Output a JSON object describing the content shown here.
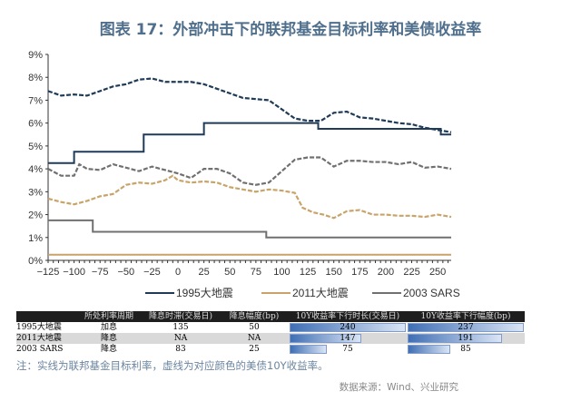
{
  "title": "图表 17：外部冲击下的联邦基金目标利率和美债收益率",
  "chart_data": {
    "type": "line",
    "xlim": [
      -125,
      263
    ],
    "ylim": [
      0,
      9
    ],
    "xticks": [
      -125,
      -100,
      -75,
      -50,
      -25,
      0,
      25,
      50,
      75,
      100,
      125,
      150,
      175,
      200,
      225,
      250
    ],
    "xtick_labels": [
      "−125",
      "−100",
      "−75",
      "−50",
      "−25",
      "0",
      "25",
      "50",
      "75",
      "100",
      "125",
      "150",
      "175",
      "200",
      "225",
      "250"
    ],
    "yticks": [
      0,
      1,
      2,
      3,
      4,
      5,
      6,
      7,
      8,
      9
    ],
    "ytick_labels": [
      "0%",
      "1%",
      "2%",
      "3%",
      "4%",
      "5%",
      "6%",
      "7%",
      "8%",
      "9%"
    ],
    "legend_position": "bottom",
    "legend": [
      "1995大地震",
      "2011大地震",
      "2003 SARS"
    ],
    "colors": {
      "1995": "#1f3b58",
      "2011": "#c8a46a",
      "2003": "#707070"
    },
    "series": [
      {
        "name": "1995大地震",
        "style": "solid",
        "color": "#1f3b58",
        "x": [
          -125,
          -100,
          -100,
          -33,
          -33,
          25,
          25,
          135,
          135,
          253,
          253,
          263
        ],
        "y": [
          4.25,
          4.25,
          4.75,
          4.75,
          5.5,
          5.5,
          6.0,
          6.0,
          5.75,
          5.75,
          5.5,
          5.5
        ]
      },
      {
        "name": "2011大地震",
        "style": "solid",
        "color": "#c8a46a",
        "x": [
          -125,
          263
        ],
        "y": [
          0.25,
          0.25
        ]
      },
      {
        "name": "2003 SARS",
        "style": "solid",
        "color": "#707070",
        "x": [
          -125,
          -82,
          -82,
          85,
          85,
          263
        ],
        "y": [
          1.75,
          1.75,
          1.25,
          1.25,
          1.0,
          1.0
        ]
      },
      {
        "style": "dashed",
        "color": "#1f3b58",
        "x": [
          -125,
          -112.5,
          -100,
          -87.5,
          -75,
          -62.5,
          -50,
          -37.5,
          -25,
          -12.5,
          0,
          12.5,
          25,
          37.5,
          50,
          62.5,
          75,
          87.5,
          100,
          112.5,
          125,
          137.5,
          150,
          162.5,
          175,
          187.5,
          200,
          212.5,
          225,
          237.5,
          250,
          263
        ],
        "y": [
          7.4,
          7.2,
          7.25,
          7.2,
          7.4,
          7.6,
          7.7,
          7.9,
          7.95,
          7.8,
          7.8,
          7.8,
          7.7,
          7.5,
          7.3,
          7.1,
          7.05,
          7.0,
          6.6,
          6.2,
          6.1,
          6.1,
          6.45,
          6.5,
          6.25,
          6.2,
          6.1,
          6.0,
          5.95,
          5.8,
          5.7,
          5.6
        ]
      },
      {
        "style": "dashed",
        "color": "#707070",
        "x": [
          -125,
          -112.5,
          -100,
          -95,
          -87.5,
          -75,
          -62.5,
          -50,
          -37.5,
          -25,
          -12.5,
          0,
          12.5,
          25,
          37.5,
          50,
          62.5,
          75,
          87.5,
          100,
          112.5,
          125,
          137.5,
          150,
          162.5,
          175,
          187.5,
          200,
          212.5,
          225,
          237.5,
          250,
          263
        ],
        "y": [
          4.0,
          3.7,
          3.7,
          4.2,
          4.0,
          3.95,
          4.2,
          4.05,
          3.9,
          4.1,
          3.95,
          3.8,
          3.6,
          4.0,
          4.0,
          3.8,
          3.4,
          3.3,
          3.4,
          3.9,
          4.4,
          4.5,
          4.5,
          4.1,
          4.35,
          4.35,
          4.3,
          4.3,
          4.2,
          4.3,
          4.05,
          4.1,
          4.0
        ]
      },
      {
        "style": "dashed",
        "color": "#c8a46a",
        "x": [
          -125,
          -112.5,
          -100,
          -87.5,
          -75,
          -62.5,
          -50,
          -37.5,
          -25,
          -12.5,
          -5,
          0,
          12.5,
          25,
          37.5,
          50,
          62.5,
          75,
          87.5,
          100,
          112.5,
          120,
          130,
          140,
          150,
          162.5,
          175,
          187.5,
          200,
          212.5,
          225,
          237.5,
          250,
          263
        ],
        "y": [
          2.7,
          2.55,
          2.45,
          2.6,
          2.8,
          2.9,
          3.3,
          3.4,
          3.35,
          3.5,
          3.7,
          3.5,
          3.4,
          3.45,
          3.4,
          3.2,
          3.1,
          3.0,
          3.1,
          3.05,
          2.95,
          2.3,
          2.1,
          2.0,
          1.85,
          2.15,
          2.2,
          2.0,
          2.0,
          1.95,
          1.95,
          1.9,
          2.0,
          1.9
        ]
      }
    ]
  },
  "table": {
    "headers": [
      "",
      "所处利率周期",
      "降息时滞(交易日)",
      "降息幅度(bp)",
      "10Y收益率下行时长(交易日)",
      "10Y收益率下行幅度(bp)"
    ],
    "rows": [
      {
        "label": "1995大地震",
        "cycle": "加息",
        "lag": "135",
        "cut": "50",
        "dur": "240",
        "drop": "237",
        "dur_v": 240,
        "drop_v": 237
      },
      {
        "label": "2011大地震",
        "cycle": "降息",
        "lag": "NA",
        "cut": "NA",
        "dur": "147",
        "drop": "191",
        "dur_v": 147,
        "drop_v": 191
      },
      {
        "label": "2003 SARS",
        "cycle": "降息",
        "lag": "83",
        "cut": "25",
        "dur": "75",
        "drop": "85",
        "dur_v": 75,
        "drop_v": 85
      }
    ]
  },
  "note": "注：实线为联邦基金目标利率，虚线为对应颜色的美债10Y收益率。",
  "source": "数据来源：Wind、兴业研究"
}
